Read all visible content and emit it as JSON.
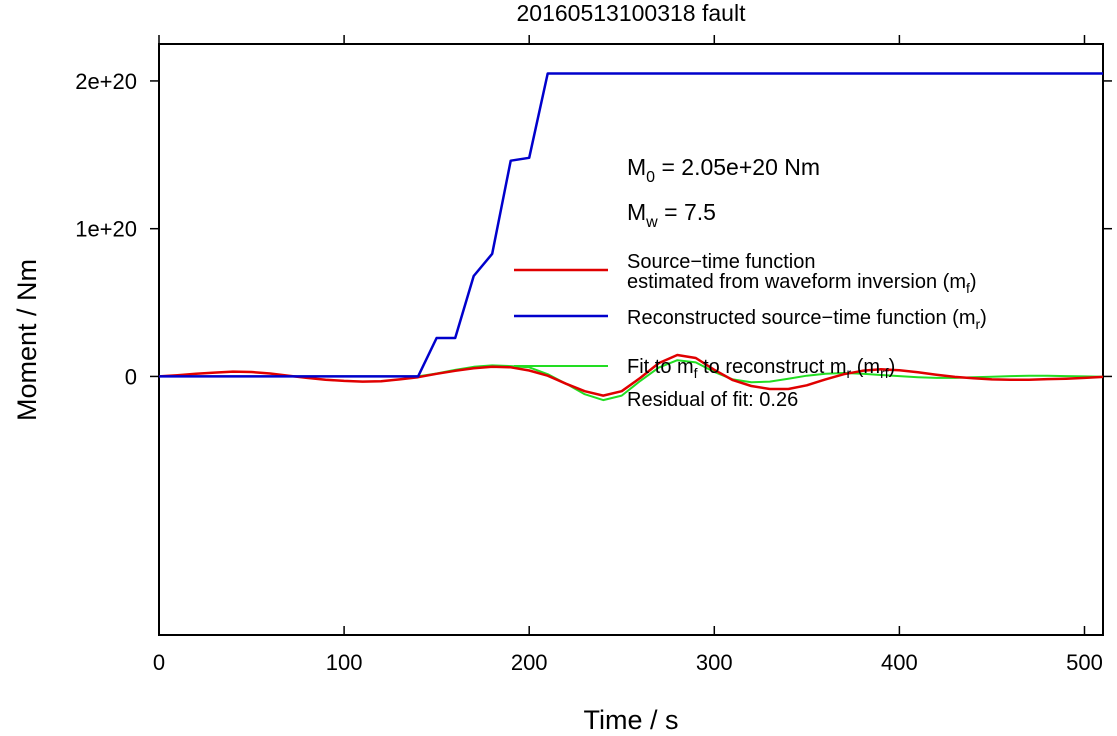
{
  "chart_data": {
    "type": "line",
    "title": "20160513100318 fault",
    "xlabel": "Time / s",
    "ylabel": "Moment / Nm",
    "xlim": [
      0,
      510
    ],
    "ylim": [
      -1.75e+20,
      2.25e+20
    ],
    "x_ticks": [
      0,
      100,
      200,
      300,
      400,
      500
    ],
    "x_tick_labels": [
      "0",
      "100",
      "200",
      "300",
      "400",
      "500"
    ],
    "y_ticks": [
      0,
      1e+20,
      2e+20
    ],
    "y_tick_labels": [
      "0",
      "1e+20",
      "2e+20"
    ],
    "grid": false,
    "legend_position": "right",
    "annotations": {
      "m0": {
        "symbol": "M",
        "sub": "0",
        "text": " = 2.05e+20 Nm"
      },
      "mw": {
        "symbol": "M",
        "sub": "w",
        "text": " = 7.5"
      },
      "residual": "Residual of fit: 0.26"
    },
    "series": [
      {
        "name_line1": "Source−time function",
        "name_line2": "estimated from waveform inversion (m",
        "name_sub": "f",
        "name_suffix": ")",
        "color": "#e00000",
        "x": [
          0,
          10,
          20,
          30,
          40,
          50,
          60,
          70,
          80,
          90,
          100,
          110,
          120,
          130,
          140,
          150,
          160,
          170,
          180,
          190,
          200,
          210,
          220,
          230,
          240,
          250,
          260,
          270,
          280,
          290,
          300,
          310,
          320,
          330,
          340,
          350,
          360,
          370,
          380,
          390,
          400,
          410,
          420,
          430,
          440,
          450,
          460,
          470,
          480,
          490,
          500,
          510
        ],
        "y": [
          0,
          8e+17,
          1.8e+18,
          2.6e+18,
          3.3e+18,
          3e+18,
          2e+18,
          5e+17,
          -1e+18,
          -2.2e+18,
          -3e+18,
          -3.5e+18,
          -3.2e+18,
          -2e+18,
          -5e+17,
          1.8e+18,
          3.8e+18,
          5.5e+18,
          6.5e+18,
          6.2e+18,
          4e+18,
          5e+17,
          -5e+18,
          -1e+19,
          -1.3e+19,
          -1e+19,
          -1e+18,
          9e+18,
          1.45e+19,
          1.25e+19,
          4.5e+18,
          -2.5e+18,
          -6.5e+18,
          -8.5e+18,
          -8.5e+18,
          -6e+18,
          -2e+18,
          1.5e+18,
          3.8e+18,
          4.8e+18,
          4.2e+18,
          2.8e+18,
          1.2e+18,
          -3e+17,
          -1.2e+18,
          -2e+18,
          -2.2e+18,
          -2.2e+18,
          -1.8e+18,
          -1.5e+18,
          -1e+18,
          -3e+17
        ]
      },
      {
        "name": "Reconstructed source−time function (m",
        "name_sub": "r",
        "name_suffix": ")",
        "color": "#0000cc",
        "x": [
          0,
          140,
          150,
          160,
          170,
          180,
          190,
          200,
          210,
          510
        ],
        "y": [
          0,
          0,
          2.6e+19,
          2.6e+19,
          6.8e+19,
          8.3e+19,
          1.46e+20,
          1.48e+20,
          2.05e+20,
          2.05e+20
        ]
      },
      {
        "name": "Fit to m",
        "name_sub": "f",
        "name_mid": " to reconstruct m",
        "name_sub2": "r",
        "name_mid2": " (m",
        "name_sub3": "rf",
        "name_suffix": ")",
        "color": "#22dd22",
        "x": [
          0,
          140,
          150,
          160,
          170,
          180,
          190,
          200,
          210,
          220,
          230,
          240,
          250,
          260,
          270,
          280,
          290,
          300,
          310,
          320,
          330,
          340,
          350,
          360,
          370,
          380,
          390,
          400,
          410,
          420,
          430,
          440,
          450,
          460,
          470,
          480,
          490,
          500,
          510
        ],
        "y": [
          0,
          0,
          2e+18,
          4.5e+18,
          6.5e+18,
          7.5e+18,
          7e+18,
          6.2e+18,
          1.5e+18,
          -5e+18,
          -1.2e+19,
          -1.6e+19,
          -1.3e+19,
          -3e+18,
          6e+18,
          1.1e+19,
          9.5e+18,
          3e+18,
          -2e+18,
          -4e+18,
          -3.5e+18,
          -1.5e+18,
          5e+17,
          1.8e+18,
          2.3e+18,
          1.8e+18,
          1e+18,
          2e+17,
          -5e+17,
          -1e+18,
          -1e+18,
          -6e+17,
          -2e+17,
          2e+17,
          4e+17,
          4e+17,
          2e+17,
          0,
          -2e+17
        ]
      }
    ]
  }
}
